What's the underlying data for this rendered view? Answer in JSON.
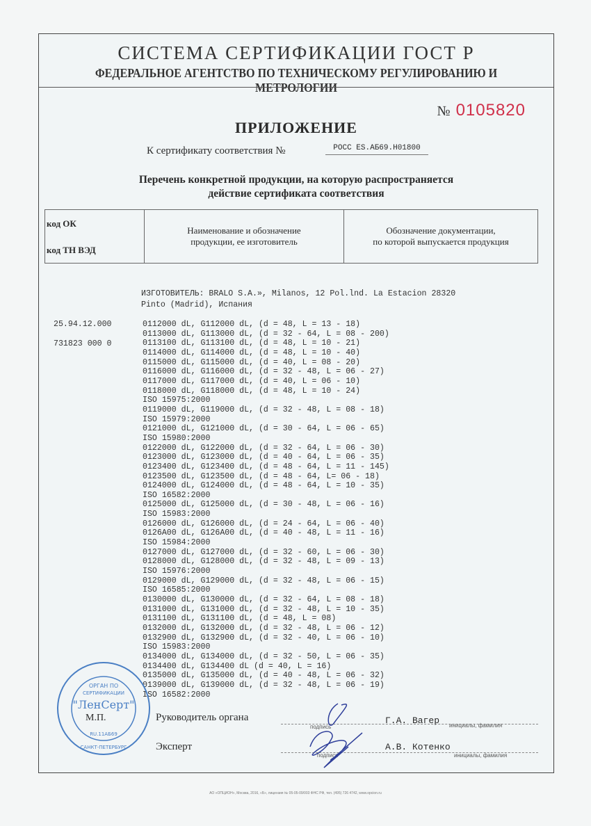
{
  "header": {
    "system": "СИСТЕМА СЕРТИФИКАЦИИ ГОСТ Р",
    "agency": "ФЕДЕРАЛЬНОЕ АГЕНТСТВО ПО ТЕХНИЧЕСКОМУ РЕГУЛИРОВАНИЮ И МЕТРОЛОГИИ"
  },
  "serial": {
    "prefix": "№",
    "number": "0105820",
    "color": "#d0304a"
  },
  "annex_title": "ПРИЛОЖЕНИЕ",
  "certificate": {
    "label": "К сертификату соответствия №",
    "number": "РОСС ES.АБ69.Н01800"
  },
  "list_title": {
    "line1": "Перечень конкретной продукции,  на которую распространяется",
    "line2": "действие сертификата соответствия"
  },
  "table_header": {
    "code_ok": "код ОК",
    "code_tnved": "код ТН ВЭД",
    "name_col": [
      "Наименование и обозначение",
      "продукции, ее изготовитель"
    ],
    "doc_col": [
      "Обозначение документации,",
      "по которой выпускается продукция"
    ]
  },
  "manufacturer": {
    "line1": "ИЗГОТОВИТЕЛЬ: BRALO S.A.», Milanos, 12 Pol.lnd. La Estacion 28320",
    "line2": "Pinto (Madrid), Испания"
  },
  "codes": {
    "ok": "25.94.12.000",
    "tnved": "731823 000 0"
  },
  "items": [
    "0112000 dL, G112000 dL, (d = 48, L = 13 - 18)",
    "0113000 dL, G113000 dL, (d = 32 - 64, L = 08 - 200)",
    "0113100 dL, G113100 dL, (d = 48, L = 10 - 21)",
    "0114000 dL, G114000 dL, (d = 48, L = 10 - 40)",
    "0115000 dL, G115000 dL, (d = 40, L = 08 - 20)",
    "0116000 dL, G116000 dL, (d = 32 - 48, L = 06 - 27)",
    "0117000 dL, G117000 dL, (d = 40, L = 06 - 10)",
    "0118000 dL, G118000 dL, (d = 48, L = 10 - 24)",
    "ISO 15975:2000",
    "0119000 dL, G119000 dL, (d = 32 - 48, L = 08 - 18)",
    "ISO 15979:2000",
    "0121000 dL, G121000 dL, (d = 30 - 64, L = 06 - 65)",
    "ISO 15980:2000",
    "0122000 dL, G122000 dL, (d = 32 - 64, L = 06 - 30)",
    "0123000 dL, G123000 dL, (d = 40 - 64, L = 06 - 35)",
    "0123400 dL, G123400 dL, (d = 48 - 64, L = 11 - 145)",
    "0123500 dL, G123500 dL, (d = 48 - 64, L= 06 - 18)",
    "0124000 dL, G124000 dL, (d = 48 - 64, L = 10 - 35)",
    "ISO 16582:2000",
    "0125000 dL, G125000 dL, (d = 30 - 48, L = 06 - 16)",
    "ISO 15983:2000",
    "0126000 dL, G126000 dL, (d = 24 - 64, L = 06 - 40)",
    "0126A00 dL, G126A00 dL, (d = 40 - 48, L = 11 - 16)",
    "ISO 15984:2000",
    "0127000 dL, G127000 dL, (d = 32 - 60, L = 06 - 30)",
    "0128000 dL, G128000 dL, (d = 32 - 48, L = 09 - 13)",
    "ISO 15976:2000",
    "0129000 dL, G129000 dL, (d = 32 - 48, L = 06 - 15)",
    "ISO 16585:2000",
    "0130000 dL, G130000 dL, (d = 32 - 64, L = 08 - 18)",
    "0131000 dL, G131000 dL, (d = 32 - 48, L = 10 - 35)",
    "0131100 dL, G131100 dL, (d = 48, L = 08)",
    "0132000 dL, G132000 dL, (d = 32 - 48, L = 06 - 12)",
    "0132900 dL, G132900 dL, (d = 32 - 40, L = 06 - 10)",
    "ISO 15983:2000",
    "0134000 dL, G134000 dL, (d = 32 - 50, L = 06 - 35)",
    "0134400 dL, G134400 dL (d = 40, L = 16)",
    "0135000 dL, G135000 dL, (d = 40 - 48, L = 06 - 32)",
    "0139000 dL, G139000 dL, (d = 32 - 48, L = 06 - 19)",
    "ISO 16582:2000"
  ],
  "signatures": {
    "head_label": "Руководитель органа",
    "head_name": "Г.А. Вагер",
    "expert_label": "Эксперт",
    "expert_name": "А.В. Котенко",
    "signature_caption": "подпись",
    "name_caption": "инициалы, фамилия",
    "seal_label": "М.П."
  },
  "stamp": {
    "top": "ОРГАН ПО СЕРТИФИКАЦИИ",
    "name": "\"ЛенСерт\"",
    "code": "RU.11АБ69",
    "bottom": "САНКТ-ПЕТЕРБУРГ",
    "color": "#4a7fc4"
  },
  "footer": "АО «ОПЦИОН», Москва, 2016, «Б», лицензия № 05-05-09/003 ФНС РФ, тел. (495) 726 4742, www.opcion.ru"
}
